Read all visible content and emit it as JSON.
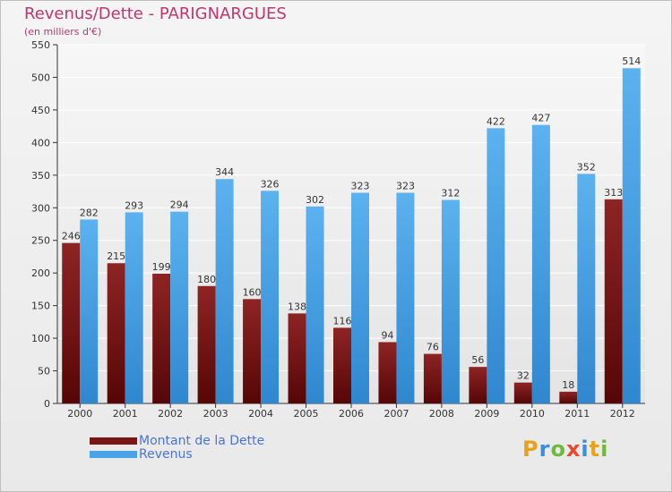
{
  "title": "Revenus/Dette - PARIGNARGUES",
  "subtitle": "(en milliers d'€)",
  "logo": {
    "text": "Proxiti",
    "letter_colors": [
      "#e8a21c",
      "#3a8fd8",
      "#6dbb3a",
      "#e84a2a",
      "#3a8fd8",
      "#e8a21c",
      "#6dbb3a"
    ]
  },
  "chart_data": {
    "type": "bar",
    "categories": [
      "2000",
      "2001",
      "2002",
      "2003",
      "2004",
      "2005",
      "2006",
      "2007",
      "2008",
      "2009",
      "2010",
      "2011",
      "2012"
    ],
    "series": [
      {
        "name": "Montant de la Dette",
        "color": "#7a1515",
        "values": [
          246,
          215,
          199,
          180,
          160,
          138,
          116,
          94,
          76,
          56,
          32,
          18,
          313
        ]
      },
      {
        "name": "Revenus",
        "color": "#4aa3e6",
        "values": [
          282,
          293,
          294,
          344,
          326,
          302,
          323,
          323,
          312,
          422,
          427,
          352,
          514
        ]
      }
    ],
    "ylim": [
      0,
      550
    ],
    "yticks": [
      0,
      50,
      100,
      150,
      200,
      250,
      300,
      350,
      400,
      450,
      500,
      550
    ],
    "grid": true,
    "legend": "bottom-left"
  }
}
